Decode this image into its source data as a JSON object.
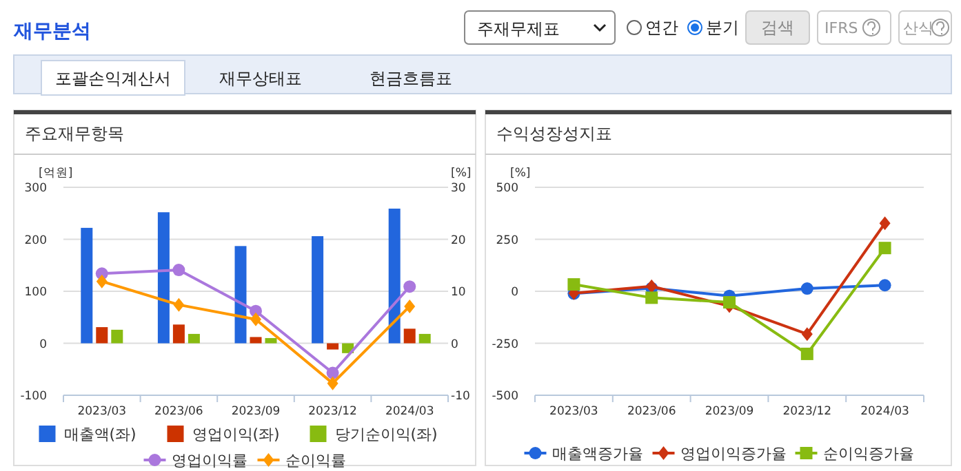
{
  "chart_data": [
    {
      "type": "bar",
      "title": "주요재무항목",
      "ylabel": "[억원]",
      "y2label": "[%]",
      "categories": [
        "2023/03",
        "2023/06",
        "2023/09",
        "2023/12",
        "2024/03"
      ],
      "series": [
        {
          "name": "매출액(좌)",
          "color": "#2266dd",
          "values": [
            222,
            252,
            187,
            206,
            259
          ]
        },
        {
          "name": "영업이익(좌)",
          "color": "#cc3300",
          "values": [
            31,
            36,
            12,
            -12,
            28
          ]
        },
        {
          "name": "당기순이익(좌)",
          "color": "#88bb11",
          "values": [
            26,
            18,
            10,
            -19,
            18
          ]
        },
        {
          "name": "영업이익률",
          "type": "line",
          "axis": "y2",
          "marker": "circle",
          "color": "#aa77dd",
          "values": [
            13.4,
            14.1,
            6.2,
            -5.7,
            10.9
          ]
        },
        {
          "name": "순이익률",
          "type": "line",
          "axis": "y2",
          "marker": "diamond",
          "color": "#ff9900",
          "values": [
            11.9,
            7.4,
            4.6,
            -7.7,
            7.1
          ]
        }
      ],
      "ylim": [
        -100,
        300
      ],
      "yticks": [
        -100,
        0,
        100,
        200,
        300
      ],
      "y2lim": [
        -10,
        30
      ],
      "y2ticks": [
        -10,
        0,
        10,
        20,
        30
      ],
      "grid": "y",
      "legend": "bottom",
      "annotations": [
        "재무분석",
        "주재무제표",
        "연간",
        "분기",
        "검색",
        "IFRS",
        "산식",
        "포괄손익계산서",
        "재무상태표",
        "현금흐름표"
      ]
    },
    {
      "type": "line",
      "title": "수익성장성지표",
      "ylabel": "[%]",
      "categories": [
        "2023/03",
        "2023/06",
        "2023/09",
        "2023/12",
        "2024/03"
      ],
      "series": [
        {
          "name": "매출액증가율",
          "marker": "circle",
          "color": "#2266dd",
          "values": [
            -11,
            15,
            -22,
            13,
            29
          ]
        },
        {
          "name": "영업이익증가율",
          "marker": "diamond",
          "color": "#cc3311",
          "values": [
            -9,
            24,
            -71,
            -206,
            327
          ]
        },
        {
          "name": "순이익증가율",
          "marker": "square",
          "color": "#88bb11",
          "values": [
            33,
            -31,
            -53,
            -301,
            208
          ]
        }
      ],
      "ylim": [
        -500,
        500
      ],
      "yticks": [
        -500,
        -250,
        0,
        250,
        500
      ],
      "grid": "y",
      "legend": "bottom"
    }
  ]
}
